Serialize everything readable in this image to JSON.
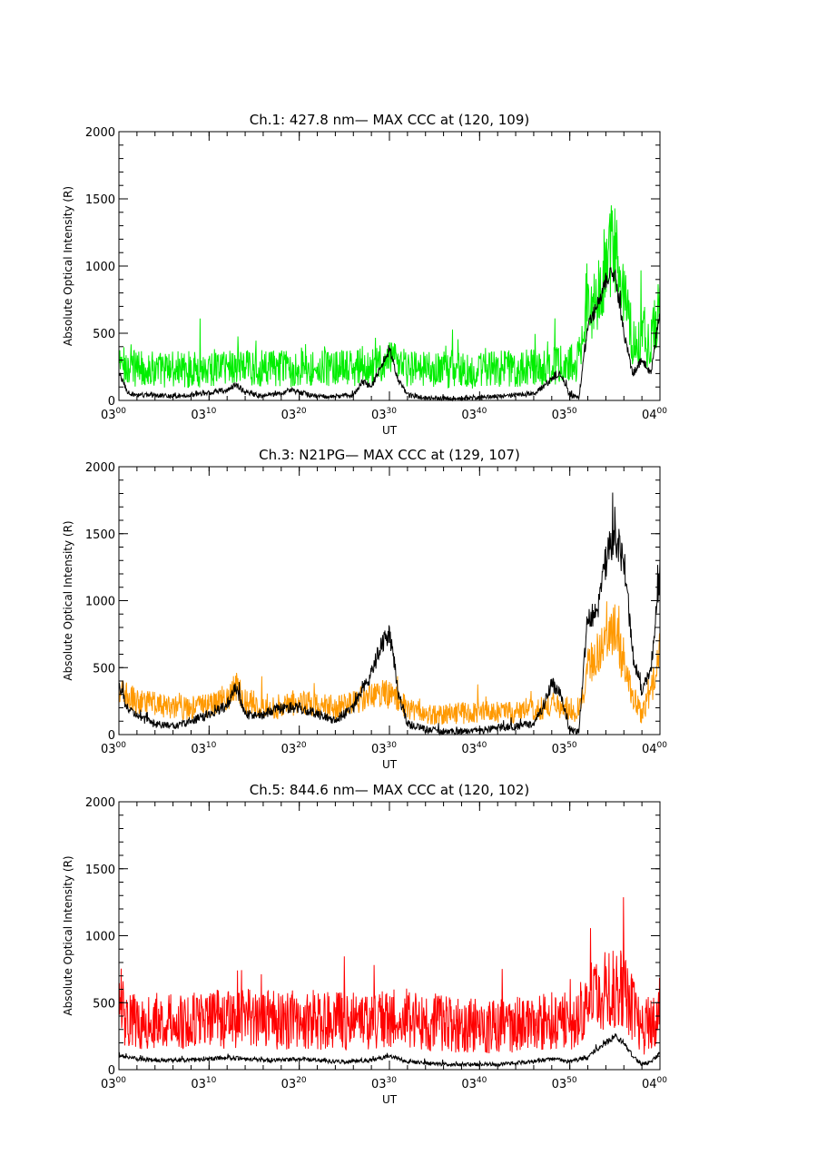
{
  "chart_data": [
    {
      "type": "line",
      "title": "Ch.1: 427.8 nm— MAX CCC at (120, 109)",
      "xlabel": "UT",
      "ylabel": "Absolute Optical Intensity (R)",
      "xlim": [
        "03:00",
        "04:00"
      ],
      "ylim": [
        0,
        2000
      ],
      "yticks": [
        "0",
        "500",
        "1000",
        "1500",
        "2000"
      ],
      "xticks": [
        {
          "base": "03",
          "sup": "00"
        },
        {
          "base": "03",
          "sup": "10"
        },
        {
          "base": "03",
          "sup": "20"
        },
        {
          "base": "03",
          "sup": "30"
        },
        {
          "base": "03",
          "sup": "40"
        },
        {
          "base": "03",
          "sup": "50"
        },
        {
          "base": "04",
          "sup": "00"
        }
      ],
      "grid": false,
      "series": [
        {
          "color": "#00ee00",
          "x": [
            "03:00",
            "03:02",
            "03:04",
            "03:06",
            "03:08",
            "03:10",
            "03:12",
            "03:14",
            "03:16",
            "03:18",
            "03:20",
            "03:22",
            "03:24",
            "03:26",
            "03:28",
            "03:30",
            "03:32",
            "03:34",
            "03:36",
            "03:38",
            "03:40",
            "03:42",
            "03:44",
            "03:46",
            "03:48",
            "03:50",
            "03:51",
            "03:52",
            "03:53",
            "03:54",
            "03:55",
            "03:56",
            "03:57",
            "03:58",
            "03:59",
            "04:00"
          ],
          "values": [
            270,
            240,
            230,
            230,
            230,
            240,
            260,
            250,
            240,
            240,
            240,
            240,
            240,
            240,
            250,
            290,
            240,
            230,
            230,
            220,
            220,
            230,
            240,
            250,
            260,
            270,
            300,
            650,
            780,
            1050,
            1150,
            850,
            400,
            500,
            400,
            750
          ],
          "noise": 190
        },
        {
          "color": "#000000",
          "x": [
            "03:00",
            "03:01",
            "03:02",
            "03:04",
            "03:06",
            "03:08",
            "03:10",
            "03:12",
            "03:13",
            "03:14",
            "03:16",
            "03:18",
            "03:19",
            "03:20",
            "03:22",
            "03:24",
            "03:26",
            "03:27",
            "03:28",
            "03:29",
            "03:30",
            "03:31",
            "03:32",
            "03:34",
            "03:36",
            "03:38",
            "03:40",
            "03:42",
            "03:44",
            "03:46",
            "03:47",
            "03:48",
            "03:49",
            "03:50",
            "03:51",
            "03:52",
            "03:53",
            "03:54",
            "03:55",
            "03:56",
            "03:57",
            "03:58",
            "03:59",
            "04:00"
          ],
          "values": [
            200,
            60,
            40,
            40,
            30,
            40,
            60,
            80,
            120,
            60,
            30,
            50,
            80,
            60,
            30,
            30,
            40,
            140,
            100,
            250,
            380,
            150,
            40,
            20,
            10,
            10,
            20,
            30,
            40,
            50,
            100,
            160,
            200,
            30,
            20,
            550,
            700,
            900,
            950,
            500,
            200,
            300,
            200,
            650
          ],
          "noise": 40
        }
      ]
    },
    {
      "type": "line",
      "title": "Ch.3: N21PG— MAX CCC at (129, 107)",
      "xlabel": "UT",
      "ylabel": "Absolute Optical Intensity (R)",
      "xlim": [
        "03:00",
        "04:00"
      ],
      "ylim": [
        0,
        2000
      ],
      "yticks": [
        "0",
        "500",
        "1000",
        "1500",
        "2000"
      ],
      "xticks": [
        {
          "base": "03",
          "sup": "00"
        },
        {
          "base": "03",
          "sup": "10"
        },
        {
          "base": "03",
          "sup": "20"
        },
        {
          "base": "03",
          "sup": "30"
        },
        {
          "base": "03",
          "sup": "40"
        },
        {
          "base": "03",
          "sup": "50"
        },
        {
          "base": "04",
          "sup": "00"
        }
      ],
      "grid": false,
      "series": [
        {
          "color": "#ff9900",
          "x": [
            "03:00",
            "03:02",
            "03:04",
            "03:06",
            "03:08",
            "03:10",
            "03:12",
            "03:13",
            "03:14",
            "03:16",
            "03:18",
            "03:20",
            "03:22",
            "03:24",
            "03:26",
            "03:28",
            "03:30",
            "03:32",
            "03:34",
            "03:36",
            "03:38",
            "03:40",
            "03:42",
            "03:44",
            "03:46",
            "03:48",
            "03:50",
            "03:51",
            "03:52",
            "03:53",
            "03:54",
            "03:55",
            "03:56",
            "03:57",
            "03:58",
            "03:59",
            "04:00"
          ],
          "values": [
            320,
            250,
            230,
            200,
            200,
            220,
            280,
            350,
            250,
            220,
            200,
            250,
            230,
            200,
            230,
            300,
            300,
            200,
            150,
            150,
            160,
            170,
            170,
            170,
            180,
            220,
            200,
            150,
            500,
            600,
            700,
            800,
            500,
            300,
            150,
            300,
            650
          ],
          "noise": 130
        },
        {
          "color": "#000000",
          "x": [
            "03:00",
            "03:01",
            "03:02",
            "03:04",
            "03:06",
            "03:08",
            "03:10",
            "03:12",
            "03:13",
            "03:14",
            "03:16",
            "03:18",
            "03:20",
            "03:22",
            "03:24",
            "03:26",
            "03:27",
            "03:28",
            "03:29",
            "03:30",
            "03:31",
            "03:32",
            "03:34",
            "03:36",
            "03:38",
            "03:40",
            "03:42",
            "03:44",
            "03:46",
            "03:47",
            "03:48",
            "03:49",
            "03:50",
            "03:51",
            "03:52",
            "03:53",
            "03:54",
            "03:55",
            "03:56",
            "03:57",
            "03:58",
            "03:59",
            "04:00"
          ],
          "values": [
            350,
            200,
            130,
            80,
            60,
            100,
            150,
            220,
            350,
            150,
            150,
            200,
            200,
            150,
            100,
            200,
            350,
            450,
            650,
            780,
            300,
            80,
            40,
            20,
            20,
            30,
            50,
            60,
            80,
            200,
            380,
            300,
            30,
            20,
            900,
            900,
            1300,
            1500,
            1300,
            600,
            300,
            500,
            1200
          ],
          "noise": 60
        }
      ]
    },
    {
      "type": "line",
      "title": "Ch.5: 844.6 nm— MAX CCC at (120, 102)",
      "xlabel": "UT",
      "ylabel": "Absolute Optical Intensity (R)",
      "xlim": [
        "03:00",
        "04:00"
      ],
      "ylim": [
        0,
        2000
      ],
      "yticks": [
        "0",
        "500",
        "1000",
        "1500",
        "2000"
      ],
      "xticks": [
        {
          "base": "03",
          "sup": "00"
        },
        {
          "base": "03",
          "sup": "10"
        },
        {
          "base": "03",
          "sup": "20"
        },
        {
          "base": "03",
          "sup": "30"
        },
        {
          "base": "03",
          "sup": "40"
        },
        {
          "base": "03",
          "sup": "50"
        },
        {
          "base": "04",
          "sup": "00"
        }
      ],
      "grid": false,
      "series": [
        {
          "color": "#ff0000",
          "x": [
            "03:00",
            "03:02",
            "03:04",
            "03:06",
            "03:08",
            "03:10",
            "03:12",
            "03:14",
            "03:16",
            "03:18",
            "03:20",
            "03:22",
            "03:24",
            "03:26",
            "03:28",
            "03:30",
            "03:32",
            "03:34",
            "03:36",
            "03:38",
            "03:40",
            "03:42",
            "03:44",
            "03:46",
            "03:48",
            "03:50",
            "03:52",
            "03:53",
            "03:54",
            "03:55",
            "03:56",
            "03:57",
            "03:58",
            "03:59",
            "04:00"
          ],
          "values": [
            420,
            370,
            360,
            350,
            360,
            370,
            380,
            380,
            370,
            370,
            380,
            370,
            360,
            360,
            370,
            380,
            360,
            350,
            340,
            330,
            320,
            330,
            340,
            350,
            360,
            360,
            480,
            550,
            600,
            620,
            580,
            450,
            300,
            350,
            450
          ],
          "noise": 240
        },
        {
          "color": "#000000",
          "x": [
            "03:00",
            "03:02",
            "03:04",
            "03:06",
            "03:08",
            "03:10",
            "03:12",
            "03:14",
            "03:16",
            "03:18",
            "03:20",
            "03:22",
            "03:24",
            "03:26",
            "03:28",
            "03:30",
            "03:32",
            "03:34",
            "03:36",
            "03:38",
            "03:40",
            "03:42",
            "03:44",
            "03:46",
            "03:48",
            "03:50",
            "03:52",
            "03:53",
            "03:54",
            "03:55",
            "03:56",
            "03:57",
            "03:58",
            "03:59",
            "04:00"
          ],
          "values": [
            110,
            80,
            70,
            70,
            70,
            80,
            90,
            80,
            70,
            70,
            80,
            70,
            60,
            60,
            70,
            100,
            60,
            50,
            40,
            40,
            40,
            40,
            50,
            60,
            80,
            60,
            90,
            150,
            200,
            250,
            200,
            100,
            40,
            60,
            120
          ],
          "noise": 30
        }
      ]
    }
  ]
}
